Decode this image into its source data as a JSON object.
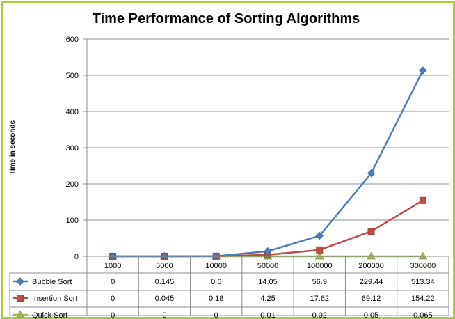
{
  "chart_data": {
    "type": "line",
    "title": "Time Performance of Sorting Algorithms",
    "xlabel": "",
    "ylabel": "Time in seconds",
    "ylim": [
      0,
      600
    ],
    "yticks": [
      0,
      100,
      200,
      300,
      400,
      500,
      600
    ],
    "grid": true,
    "legend": "data-table",
    "categories": [
      "1000",
      "5000",
      "10000",
      "50000",
      "100000",
      "200000",
      "300000"
    ],
    "series": [
      {
        "name": "Bubble Sort",
        "values": [
          0,
          0.145,
          0.6,
          14.05,
          56.9,
          229.44,
          513.34
        ],
        "labels": [
          "0",
          "0.145",
          "0.6",
          "14.05",
          "56.9",
          "229.44",
          "513.34"
        ],
        "color": "#4a7ebb",
        "marker": "diamond"
      },
      {
        "name": "Insertion Sort",
        "values": [
          0,
          0.045,
          0.18,
          4.25,
          17.62,
          69.12,
          154.22
        ],
        "labels": [
          "0",
          "0.045",
          "0.18",
          "4.25",
          "17.62",
          "69.12",
          "154.22"
        ],
        "color": "#be4b48",
        "marker": "square"
      },
      {
        "name": "Quick Sort",
        "values": [
          0,
          0,
          0,
          0.01,
          0.02,
          0.05,
          0.065
        ],
        "labels": [
          "0",
          "0",
          "0",
          "0.01",
          "0.02",
          "0.05",
          "0.065"
        ],
        "color": "#98b954",
        "marker": "triangle"
      }
    ]
  }
}
